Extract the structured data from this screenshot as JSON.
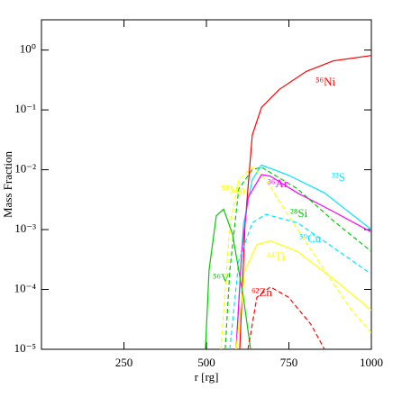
{
  "chart_data": {
    "type": "line",
    "x_label": "r [rg]",
    "y_label": "Mass Fraction",
    "log_y": true,
    "xlim": [
      0,
      1000
    ],
    "ylim": [
      1e-05,
      3.2
    ],
    "xticks": [
      250,
      500,
      750,
      1000
    ],
    "yticks": [
      {
        "value": 1e-05,
        "label": "10⁻⁵"
      },
      {
        "value": 0.0001,
        "label": "10⁻⁴"
      },
      {
        "value": 0.001,
        "label": "10⁻³"
      },
      {
        "value": 0.01,
        "label": "10⁻²"
      },
      {
        "value": 0.1,
        "label": "10⁻¹"
      },
      {
        "value": 1,
        "label": "10⁰"
      }
    ],
    "series": [
      {
        "name": "⁵⁶Ni",
        "color": "#ff0000",
        "dash": false,
        "x": [
          601,
          617,
          639,
          667,
          721,
          803,
          885,
          1000
        ],
        "values": [
          1e-05,
          0.0012,
          0.038,
          0.11,
          0.22,
          0.44,
          0.66,
          0.81
        ]
      },
      {
        "name": "³²S",
        "color": "#00e5ff",
        "dash": false,
        "x": [
          590,
          612,
          639,
          667,
          749,
          858,
          1000
        ],
        "values": [
          1e-05,
          0.0012,
          0.0068,
          0.012,
          0.0081,
          0.0041,
          0.001
        ]
      },
      {
        "name": "³⁶Ar",
        "color": "#ff00ff",
        "dash": false,
        "x": [
          590,
          607,
          626,
          667,
          694,
          776,
          885,
          1000
        ],
        "values": [
          1e-05,
          0.00043,
          0.0034,
          0.0083,
          0.0078,
          0.0041,
          0.002,
          0.00091
        ]
      },
      {
        "name": "²⁸Si",
        "color": "#00cc00",
        "dash": true,
        "x": [
          557,
          571,
          598,
          639,
          667,
          776,
          885,
          1000
        ],
        "values": [
          1e-05,
          0.00021,
          0.0048,
          0.01,
          0.011,
          0.0048,
          0.0014,
          0.00043
        ]
      },
      {
        "name": "⁵⁵Mn",
        "color": "#ffff00",
        "dash": true,
        "x": [
          544,
          571,
          598,
          639,
          680,
          749,
          858,
          940,
          1000
        ],
        "values": [
          1e-05,
          0.0012,
          0.0068,
          0.011,
          0.0068,
          0.0017,
          0.00021,
          4.5e-05,
          1.9e-05
        ]
      },
      {
        "name": "⁵⁹Cu",
        "color": "#00e5ff",
        "dash": true,
        "x": [
          571,
          598,
          639,
          680,
          776,
          885,
          1000
        ],
        "values": [
          1e-05,
          0.0003,
          0.0013,
          0.0018,
          0.0013,
          0.0005,
          0.00018
        ]
      },
      {
        "name": "⁴⁴Ti",
        "color": "#ffff00",
        "dash": false,
        "x": [
          590,
          617,
          653,
          694,
          776,
          885,
          1000
        ],
        "values": [
          1e-05,
          0.00021,
          0.00056,
          0.00065,
          0.00043,
          0.00015,
          4.5e-05
        ]
      },
      {
        "name": "⁵⁶V",
        "color": "#00cc00",
        "dash": false,
        "x": [
          497,
          508,
          530,
          552,
          579,
          612,
          634
        ],
        "values": [
          1e-05,
          0.00021,
          0.0017,
          0.0022,
          0.00085,
          7.4e-05,
          1e-05
        ]
      },
      {
        "name": "⁶²Zn",
        "color": "#ff0000",
        "dash": true,
        "x": [
          626,
          653,
          694,
          749,
          817,
          858
        ],
        "values": [
          1e-05,
          7.4e-05,
          0.00011,
          7.4e-05,
          2.6e-05,
          1e-05
        ]
      }
    ]
  }
}
